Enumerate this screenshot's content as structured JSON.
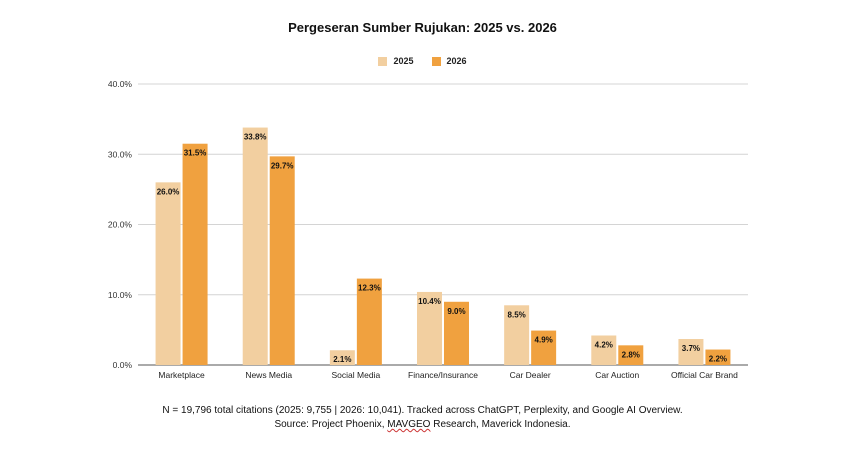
{
  "chart_data": {
    "type": "bar",
    "title": "Pergeseran Sumber Rujukan: 2025 vs. 2026",
    "xlabel": "",
    "ylabel": "",
    "categories": [
      "Marketplace",
      "News Media",
      "Social Media",
      "Finance/Insurance",
      "Car Dealer",
      "Car Auction",
      "Official Car Brand"
    ],
    "series": [
      {
        "name": "2025",
        "color": "#f2cfa0",
        "values": [
          26.0,
          33.8,
          2.1,
          10.4,
          8.5,
          4.2,
          3.7
        ],
        "labels": [
          "26.0%",
          "33.8%",
          "2.1%",
          "10.4%",
          "8.5%",
          "4.2%",
          "3.7%"
        ]
      },
      {
        "name": "2026",
        "color": "#f0a13f",
        "values": [
          31.5,
          29.7,
          12.3,
          9.0,
          4.9,
          2.8,
          2.2
        ],
        "labels": [
          "31.5%",
          "29.7%",
          "12.3%",
          "9.0%",
          "4.9%",
          "2.8%",
          "2.2%"
        ]
      }
    ],
    "ylim": [
      0,
      40
    ],
    "yticks": [
      0,
      10,
      20,
      30,
      40
    ],
    "ytick_labels": [
      "0.0%",
      "10.0%",
      "20.0%",
      "30.0%",
      "40.0%"
    ],
    "grid": true,
    "legend_position": "top-center"
  },
  "footnote": {
    "line1": "N = 19,796 total citations (2025: 9,755 | 2026: 10,041). Tracked across ChatGPT, Perplexity, and Google AI Overview.",
    "line2_prefix": "Source: Project Phoenix, ",
    "line2_brand": "MAVGEO",
    "line2_suffix": " Research, Maverick Indonesia."
  }
}
